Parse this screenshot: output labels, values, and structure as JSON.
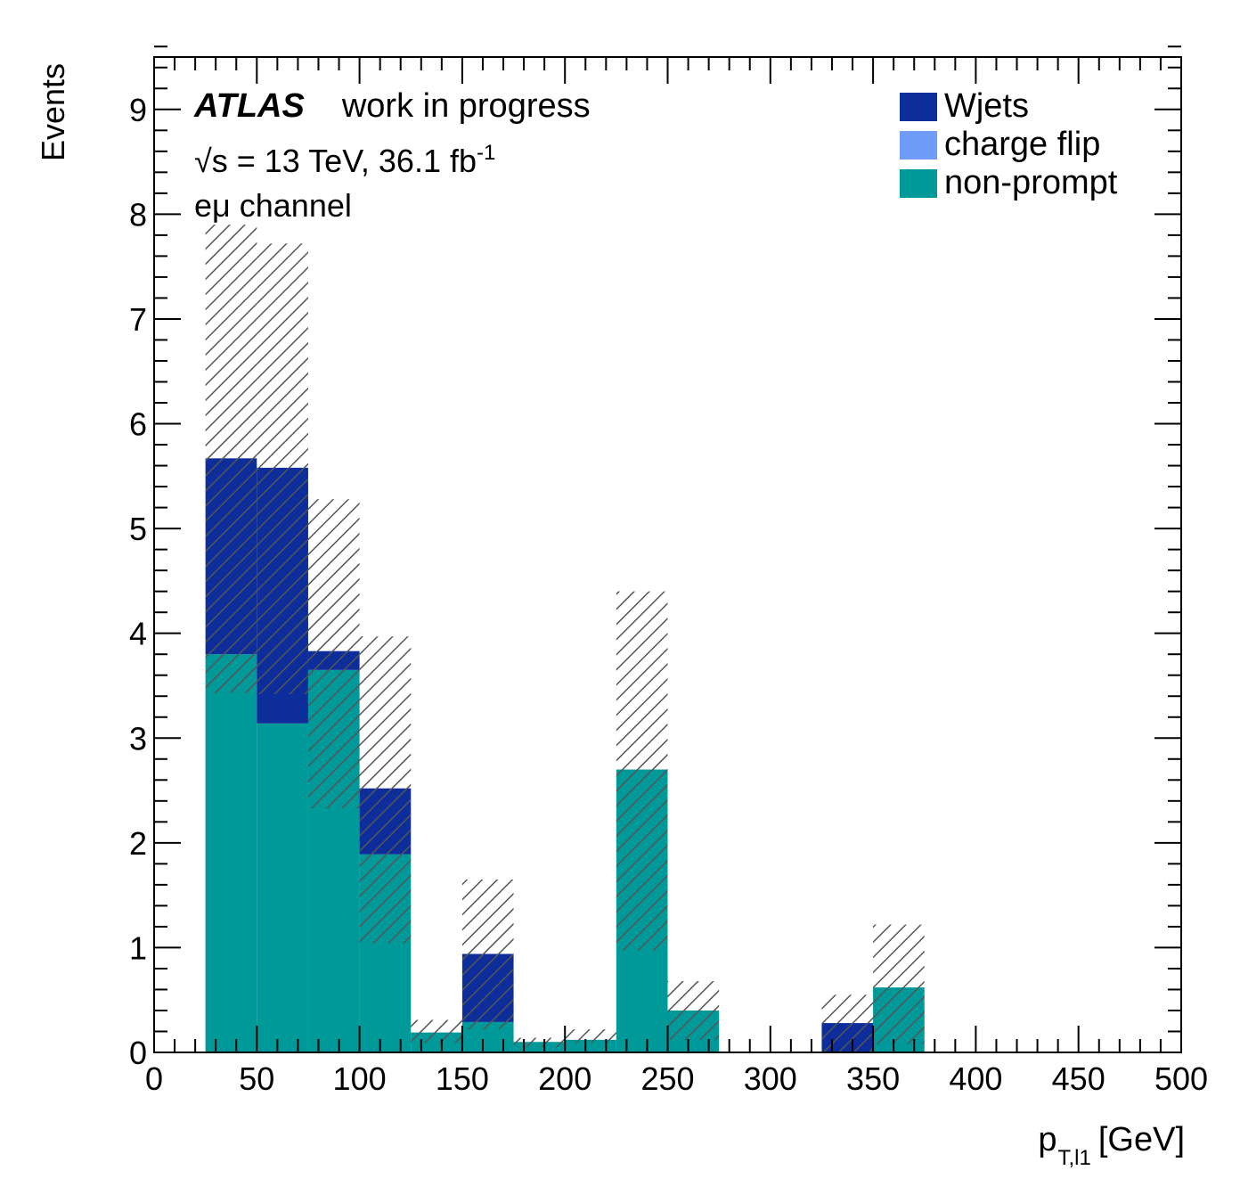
{
  "header": {
    "experiment": "ATLAS",
    "status": "work in progress",
    "energy_text": "√s = 13 TeV, 36.1 fb",
    "energy_exponent": "-1",
    "channel": "eμ channel"
  },
  "legend": [
    {
      "label": "Wjets",
      "color": "#0d2e9a"
    },
    {
      "label": "charge flip",
      "color": "#6f9cf8"
    },
    {
      "label": "non-prompt",
      "color": "#009999"
    }
  ],
  "chart_data": {
    "type": "bar",
    "stacked": true,
    "histogram": true,
    "xlabel": "p",
    "xlabel_sub": "T,l1",
    "xlabel_unit": "[GeV]",
    "ylabel": "Events",
    "xlim": [
      0,
      500
    ],
    "ylim": [
      0,
      9.5
    ],
    "bin_edges": [
      0,
      25,
      50,
      75,
      100,
      125,
      150,
      175,
      200,
      225,
      250,
      275,
      300,
      325,
      350,
      375,
      400,
      425,
      450,
      475,
      500
    ],
    "xticks": [
      0,
      50,
      100,
      150,
      200,
      250,
      300,
      350,
      400,
      450,
      500
    ],
    "yticks": [
      0,
      1,
      2,
      3,
      4,
      5,
      6,
      7,
      8,
      9
    ],
    "series": [
      {
        "name": "non-prompt",
        "color": "#009999",
        "values": [
          0,
          3.8,
          3.14,
          3.65,
          1.89,
          0.19,
          0.29,
          0.1,
          0.12,
          2.7,
          0.4,
          0,
          0,
          0,
          0.62,
          0,
          0,
          0,
          0,
          0
        ]
      },
      {
        "name": "charge flip",
        "color": "#6f9cf8",
        "values": [
          0,
          0,
          0,
          0,
          0,
          0,
          0,
          0,
          0,
          0,
          0,
          0,
          0,
          0,
          0,
          0,
          0,
          0,
          0,
          0
        ]
      },
      {
        "name": "Wjets",
        "color": "#0d2e9a",
        "values": [
          0,
          1.87,
          2.44,
          0.18,
          0.63,
          0,
          0.65,
          0,
          0,
          0,
          0,
          0,
          0,
          0.28,
          0,
          0,
          0,
          0,
          0,
          0
        ]
      }
    ],
    "uncertainty": {
      "style": "hatched",
      "lower": [
        0,
        3.43,
        3.42,
        2.33,
        1.04,
        0.09,
        0.22,
        0.05,
        0.09,
        0.97,
        0.12,
        0,
        0,
        0,
        0.08,
        0,
        0,
        0,
        0,
        0
      ],
      "upper": [
        0,
        7.9,
        7.72,
        5.28,
        3.97,
        0.31,
        1.65,
        0.14,
        0.22,
        4.4,
        0.68,
        0,
        0,
        0.55,
        1.22,
        0,
        0,
        0,
        0,
        0
      ]
    }
  }
}
